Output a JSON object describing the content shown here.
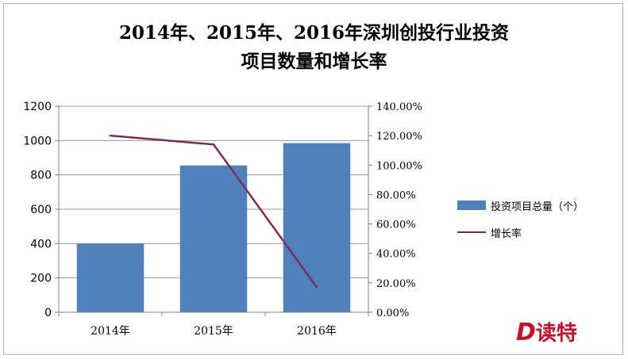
{
  "chart_data": {
    "type": "bar",
    "title_line1": "2014年、2015年、2016年深圳创投行业投资",
    "title_line2": "项目数量和增长率",
    "categories": [
      "2014年",
      "2015年",
      "2016年"
    ],
    "series": [
      {
        "name": "投资项目总量（个）",
        "type": "bar",
        "axis": "left",
        "values": [
          400,
          855,
          985
        ],
        "color": "#4f81bd"
      },
      {
        "name": "增长率",
        "type": "line",
        "axis": "right",
        "values": [
          1.2,
          1.14,
          0.17
        ],
        "color": "#7f2b58"
      }
    ],
    "y_left": {
      "min": 0,
      "max": 1200,
      "ticks": [
        "0",
        "200",
        "400",
        "600",
        "800",
        "1000",
        "1200"
      ]
    },
    "y_right": {
      "min": 0,
      "max": 1.4,
      "ticks": [
        "0.00%",
        "20.00%",
        "40.00%",
        "60.00%",
        "80.00%",
        "100.00%",
        "120.00%",
        "140.00%"
      ]
    },
    "grid": true,
    "legend_position": "right"
  },
  "watermark": {
    "logo": "D",
    "text": "读特"
  }
}
